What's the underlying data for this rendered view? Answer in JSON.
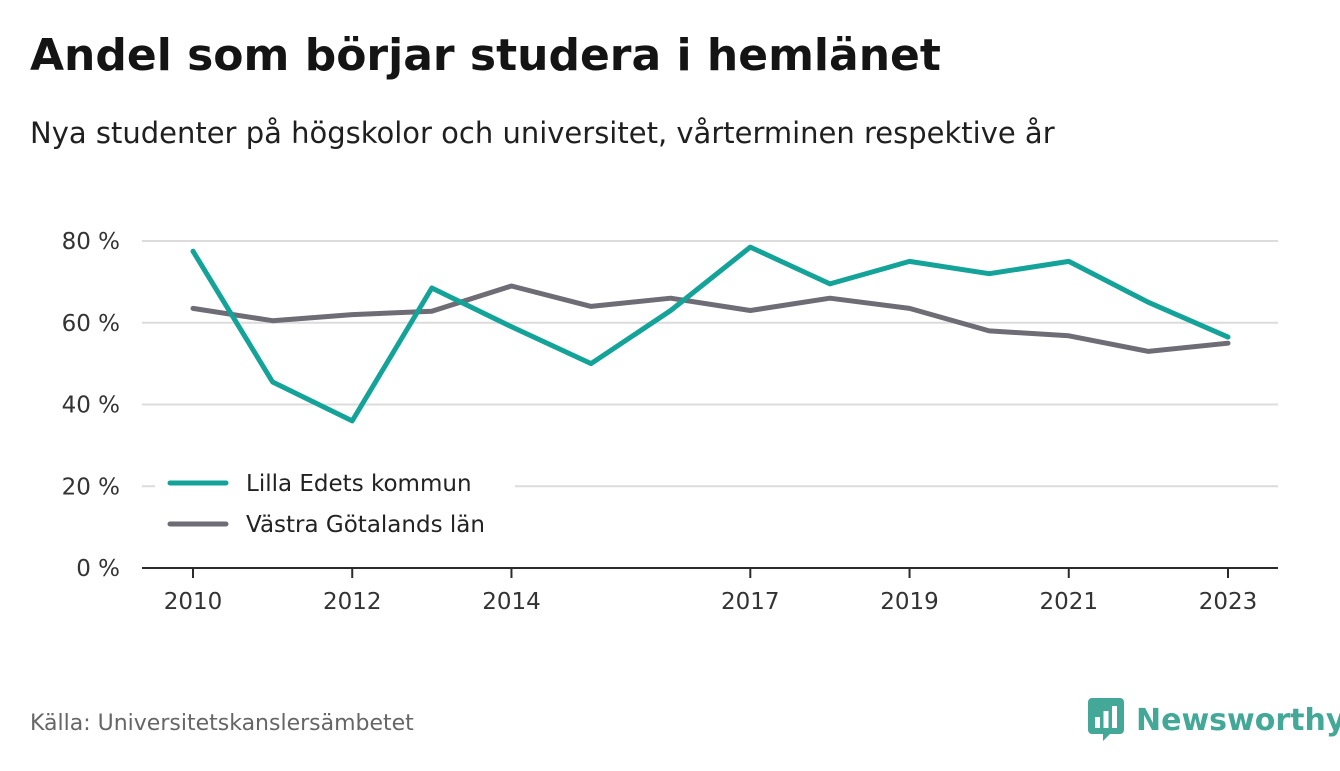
{
  "title": "Andel som börjar studera i hemlänet",
  "subtitle": "Nya studenter på högskolor och universitet, vårterminen respektive år",
  "source": "Källa: Universitetskanslersämbetet",
  "brand": {
    "name": "Newsworthy",
    "icon": "newsworthy-logo-icon",
    "color": "#43a898"
  },
  "chart_data": {
    "type": "line",
    "title": "Andel som börjar studera i hemlänet",
    "subtitle": "Nya studenter på högskolor och universitet, vårterminen respektive år",
    "xlabel": "",
    "ylabel": "",
    "x": [
      2010,
      2011,
      2012,
      2013,
      2014,
      2015,
      2016,
      2017,
      2018,
      2019,
      2020,
      2021,
      2022,
      2023
    ],
    "xticks": [
      2010,
      2012,
      2014,
      2017,
      2019,
      2021,
      2023
    ],
    "xlim": [
      2010,
      2023
    ],
    "yticks": [
      0,
      20,
      40,
      60,
      80
    ],
    "ytick_labels": [
      "0 %",
      "20 %",
      "40 %",
      "60 %",
      "80 %"
    ],
    "ylim": [
      0,
      80
    ],
    "grid": "horizontal",
    "legend_position": "bottom-left",
    "series": [
      {
        "name": "Lilla Edets kommun",
        "color": "#14a398",
        "values": [
          77.5,
          45.5,
          36,
          68.5,
          59,
          50,
          63,
          78.5,
          69.5,
          75,
          72,
          75,
          65,
          56.5
        ]
      },
      {
        "name": "Västra Götalands län",
        "color": "#6e6c75",
        "values": [
          63.5,
          60.5,
          62,
          62.8,
          69,
          64,
          66,
          63,
          66,
          63.5,
          58,
          56.8,
          53,
          55
        ]
      }
    ]
  }
}
